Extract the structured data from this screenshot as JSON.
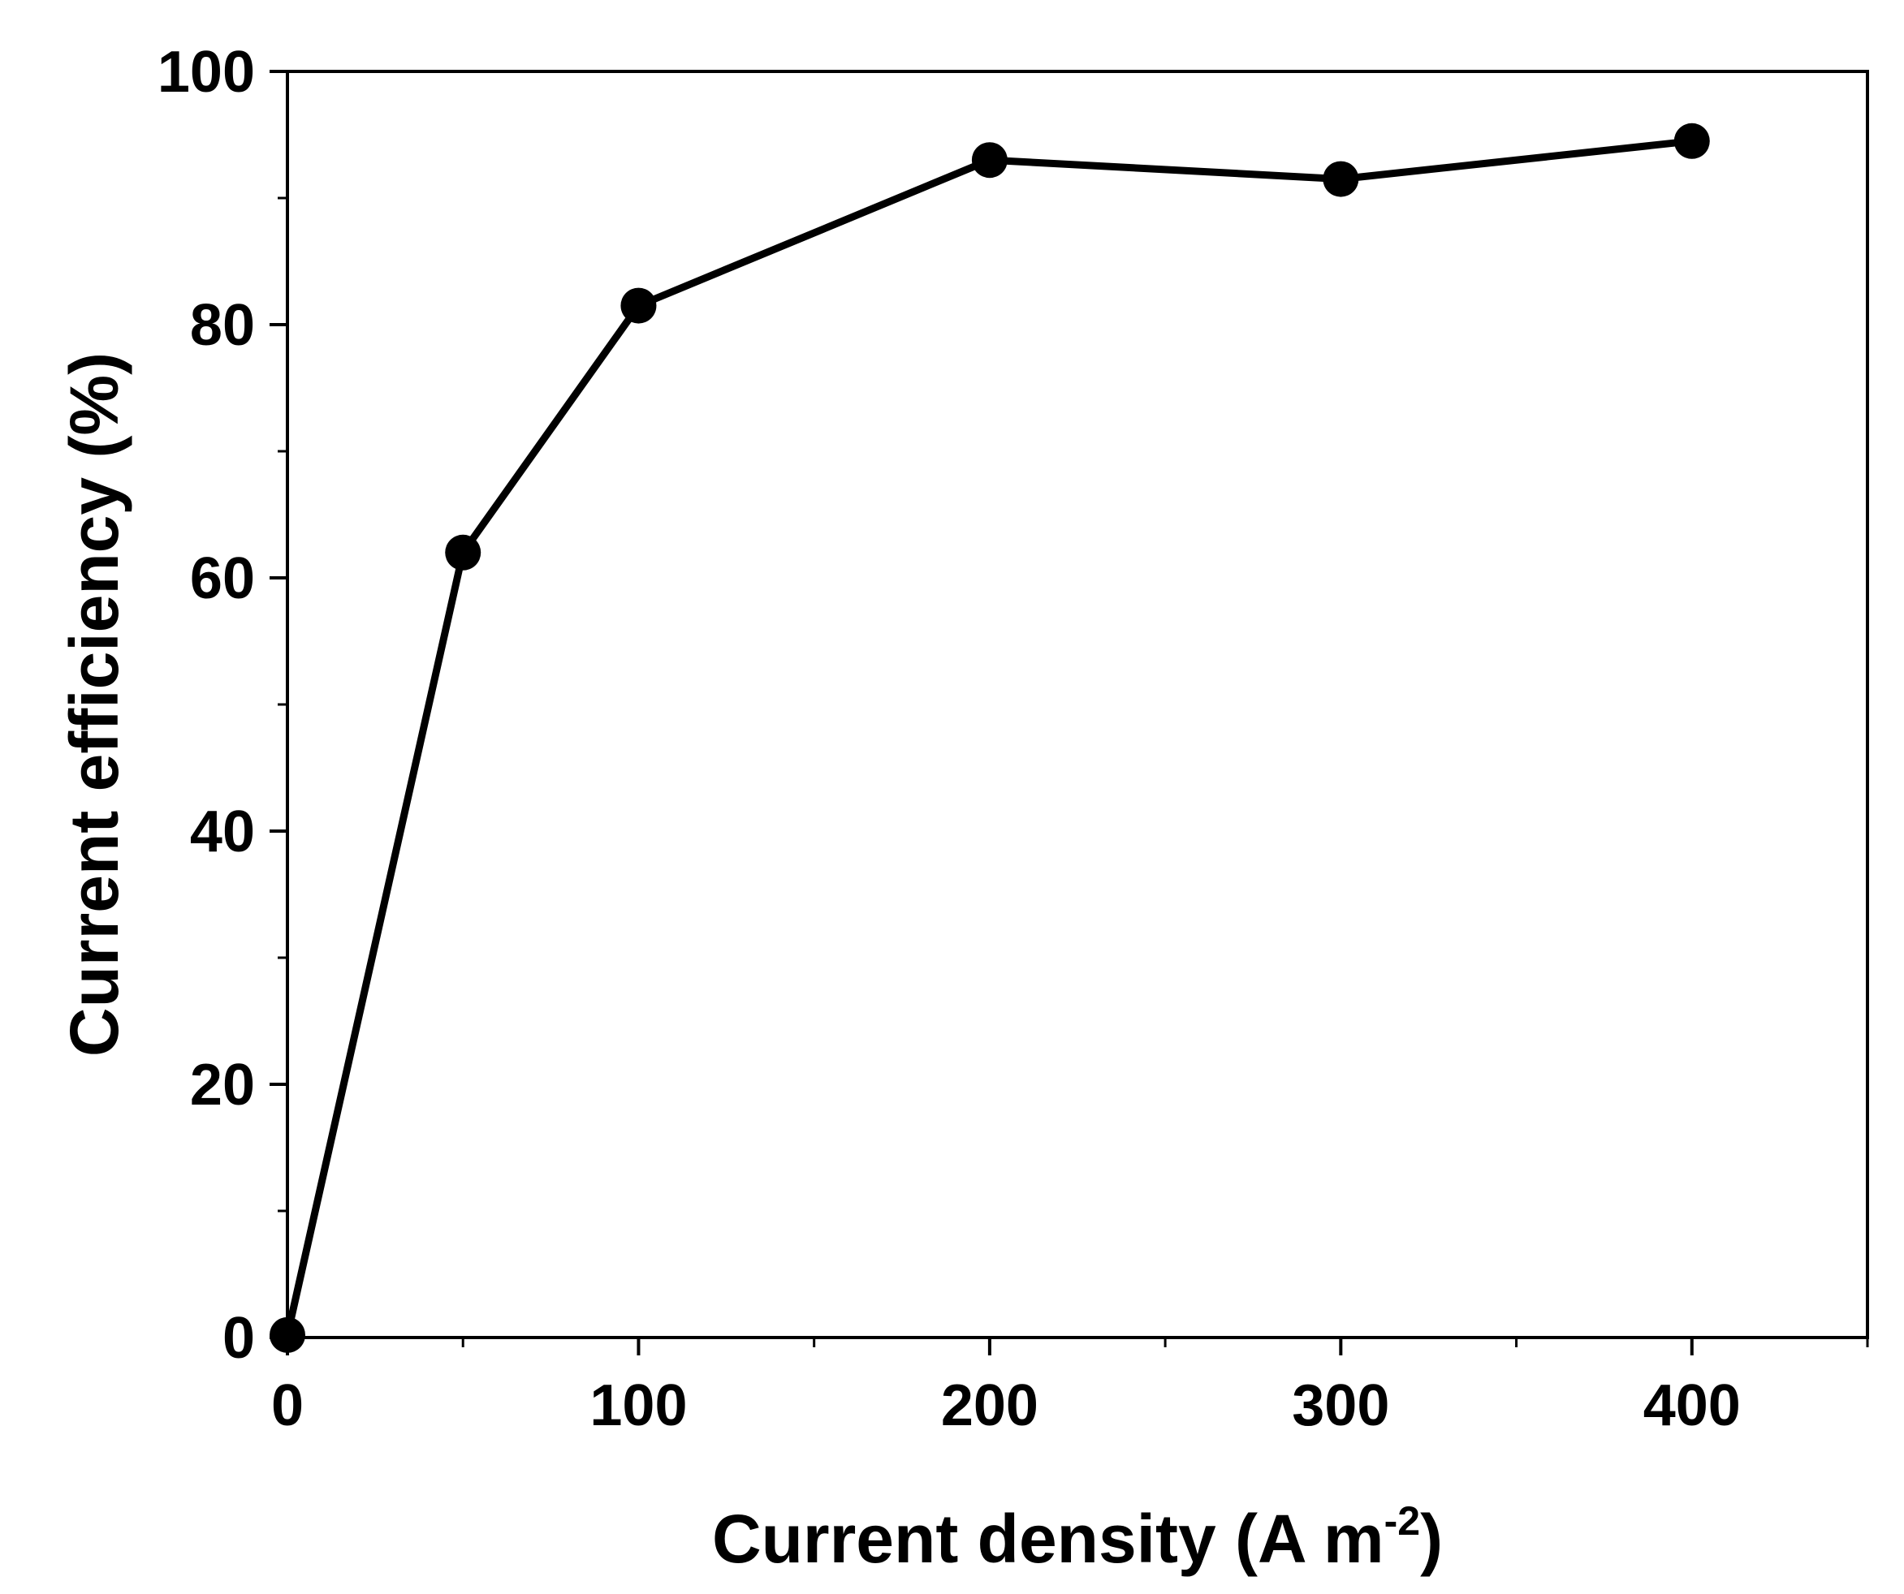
{
  "chart_data": {
    "type": "line",
    "title": "",
    "xlabel": "Current density (A m",
    "xlabel_sup": "-2",
    "xlabel_suffix": ")",
    "ylabel": "Current efficiency (%)",
    "xlim": [
      0,
      450
    ],
    "ylim": [
      0,
      100
    ],
    "x_ticks": [
      0,
      100,
      200,
      300,
      400
    ],
    "x_tick_labels": [
      "0",
      "100",
      "200",
      "300",
      "400"
    ],
    "x_minor_ticks": [
      50,
      150,
      250,
      350,
      450
    ],
    "y_ticks": [
      0,
      20,
      40,
      60,
      80,
      100
    ],
    "y_tick_labels": [
      "0",
      "20",
      "40",
      "60",
      "80",
      "100"
    ],
    "y_minor_ticks": [
      10,
      30,
      50,
      70,
      90
    ],
    "grid": false,
    "legend": "none",
    "series": [
      {
        "x": [
          0,
          50,
          100,
          200,
          300,
          400
        ],
        "y": [
          0.2,
          62,
          81.5,
          93,
          91.5,
          94.5
        ],
        "marker": "circle",
        "color": "#000000"
      }
    ]
  }
}
